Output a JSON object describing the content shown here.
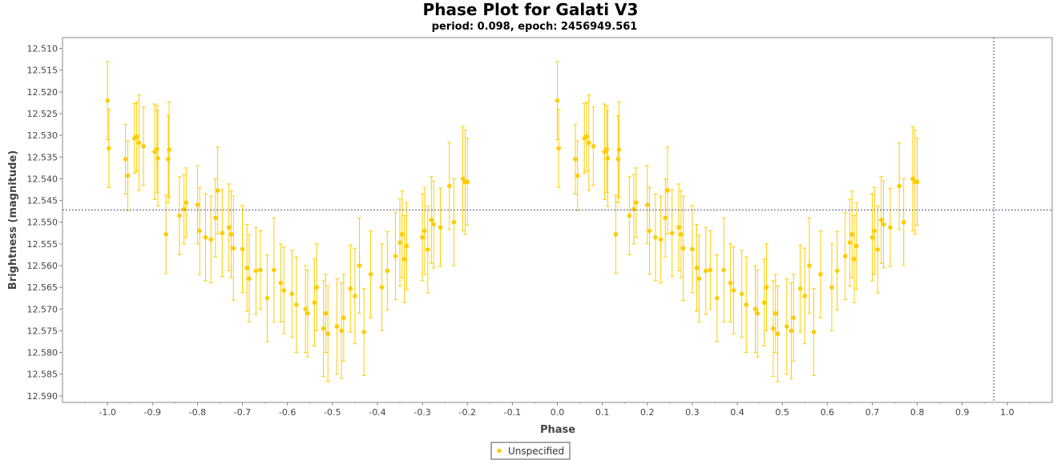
{
  "chart_data": {
    "type": "scatter",
    "title": "Phase Plot for Galati V3",
    "subtitle": "period: 0.098, epoch: 2456949.561",
    "xlabel": "Phase",
    "ylabel": "Brightness (magnitude)",
    "xlim": [
      -1.1,
      1.1
    ],
    "ylim": [
      12.5915,
      12.5075
    ],
    "y_inverted": true,
    "x_ticks": [
      "-1.0",
      "-0.9",
      "-0.8",
      "-0.7",
      "-0.6",
      "-0.5",
      "-0.4",
      "-0.3",
      "-0.2",
      "-0.1",
      "0.0",
      "0.1",
      "0.2",
      "0.3",
      "0.4",
      "0.5",
      "0.6",
      "0.7",
      "0.8",
      "0.9",
      "1.0"
    ],
    "y_ticks": [
      "12.510",
      "12.515",
      "12.520",
      "12.525",
      "12.530",
      "12.535",
      "12.540",
      "12.545",
      "12.550",
      "12.555",
      "12.560",
      "12.565",
      "12.570",
      "12.575",
      "12.580",
      "12.585",
      "12.590"
    ],
    "mean_magnitude": 12.5472,
    "crosshair_phase": 0.97,
    "grid": false,
    "legend_position": "bottom",
    "marker_color": "#ffcc00",
    "series": [
      {
        "name": "Unspecified",
        "base_points": [
          {
            "x": 0.0,
            "y": 12.522,
            "err": 0.009
          },
          {
            "x": 0.003,
            "y": 12.533,
            "err": 0.009
          },
          {
            "x": 0.04,
            "y": 12.5355,
            "err": 0.008
          },
          {
            "x": 0.045,
            "y": 12.5393,
            "err": 0.008
          },
          {
            "x": 0.06,
            "y": 12.5307,
            "err": 0.008
          },
          {
            "x": 0.065,
            "y": 12.5303,
            "err": 0.008
          },
          {
            "x": 0.07,
            "y": 12.5317,
            "err": 0.011
          },
          {
            "x": 0.08,
            "y": 12.5325,
            "err": 0.009
          },
          {
            "x": 0.105,
            "y": 12.5338,
            "err": 0.011
          },
          {
            "x": 0.11,
            "y": 12.5332,
            "err": 0.01
          },
          {
            "x": 0.112,
            "y": 12.5353,
            "err": 0.011
          },
          {
            "x": 0.13,
            "y": 12.5528,
            "err": 0.009
          },
          {
            "x": 0.135,
            "y": 12.5355,
            "err": 0.01
          },
          {
            "x": 0.137,
            "y": 12.5333,
            "err": 0.011
          },
          {
            "x": 0.16,
            "y": 12.5485,
            "err": 0.009
          },
          {
            "x": 0.17,
            "y": 12.547,
            "err": 0.008
          },
          {
            "x": 0.175,
            "y": 12.5455,
            "err": 0.008
          },
          {
            "x": 0.2,
            "y": 12.546,
            "err": 0.009
          },
          {
            "x": 0.205,
            "y": 12.552,
            "err": 0.01
          },
          {
            "x": 0.218,
            "y": 12.5535,
            "err": 0.01
          },
          {
            "x": 0.23,
            "y": 12.554,
            "err": 0.01
          },
          {
            "x": 0.24,
            "y": 12.549,
            "err": 0.009
          },
          {
            "x": 0.245,
            "y": 12.5427,
            "err": 0.01
          },
          {
            "x": 0.255,
            "y": 12.5525,
            "err": 0.01
          },
          {
            "x": 0.27,
            "y": 12.5512,
            "err": 0.01
          },
          {
            "x": 0.275,
            "y": 12.5528,
            "err": 0.01
          },
          {
            "x": 0.28,
            "y": 12.556,
            "err": 0.012
          },
          {
            "x": 0.3,
            "y": 12.5562,
            "err": 0.01
          },
          {
            "x": 0.31,
            "y": 12.5605,
            "err": 0.01
          },
          {
            "x": 0.315,
            "y": 12.563,
            "err": 0.01
          },
          {
            "x": 0.33,
            "y": 12.5612,
            "err": 0.01
          },
          {
            "x": 0.34,
            "y": 12.561,
            "err": 0.009
          },
          {
            "x": 0.355,
            "y": 12.5675,
            "err": 0.01
          },
          {
            "x": 0.37,
            "y": 12.561,
            "err": 0.012
          },
          {
            "x": 0.385,
            "y": 12.564,
            "err": 0.009
          },
          {
            "x": 0.392,
            "y": 12.5657,
            "err": 0.01
          },
          {
            "x": 0.41,
            "y": 12.5665,
            "err": 0.01
          },
          {
            "x": 0.42,
            "y": 12.569,
            "err": 0.011
          },
          {
            "x": 0.44,
            "y": 12.57,
            "err": 0.01
          },
          {
            "x": 0.445,
            "y": 12.571,
            "err": 0.01
          },
          {
            "x": 0.46,
            "y": 12.5685,
            "err": 0.01
          },
          {
            "x": 0.465,
            "y": 12.565,
            "err": 0.01
          },
          {
            "x": 0.48,
            "y": 12.5745,
            "err": 0.011
          },
          {
            "x": 0.485,
            "y": 12.571,
            "err": 0.009
          },
          {
            "x": 0.49,
            "y": 12.5757,
            "err": 0.011
          },
          {
            "x": 0.51,
            "y": 12.574,
            "err": 0.011
          },
          {
            "x": 0.52,
            "y": 12.575,
            "err": 0.011
          },
          {
            "x": 0.525,
            "y": 12.572,
            "err": 0.01
          },
          {
            "x": 0.54,
            "y": 12.5653,
            "err": 0.01
          },
          {
            "x": 0.55,
            "y": 12.567,
            "err": 0.011
          },
          {
            "x": 0.56,
            "y": 12.56,
            "err": 0.011
          },
          {
            "x": 0.57,
            "y": 12.5753,
            "err": 0.01
          },
          {
            "x": 0.585,
            "y": 12.562,
            "err": 0.01
          },
          {
            "x": 0.61,
            "y": 12.565,
            "err": 0.01
          },
          {
            "x": 0.622,
            "y": 12.5612,
            "err": 0.009
          },
          {
            "x": 0.64,
            "y": 12.5578,
            "err": 0.01
          },
          {
            "x": 0.65,
            "y": 12.5547,
            "err": 0.01
          },
          {
            "x": 0.655,
            "y": 12.5528,
            "err": 0.01
          },
          {
            "x": 0.66,
            "y": 12.5585,
            "err": 0.01
          },
          {
            "x": 0.665,
            "y": 12.5555,
            "err": 0.01
          },
          {
            "x": 0.7,
            "y": 12.5535,
            "err": 0.01
          },
          {
            "x": 0.705,
            "y": 12.552,
            "err": 0.01
          },
          {
            "x": 0.712,
            "y": 12.5563,
            "err": 0.01
          },
          {
            "x": 0.72,
            "y": 12.5495,
            "err": 0.01
          },
          {
            "x": 0.725,
            "y": 12.5505,
            "err": 0.01
          },
          {
            "x": 0.74,
            "y": 12.5512,
            "err": 0.009
          },
          {
            "x": 0.76,
            "y": 12.5417,
            "err": 0.01
          },
          {
            "x": 0.77,
            "y": 12.55,
            "err": 0.01
          },
          {
            "x": 0.79,
            "y": 12.54,
            "err": 0.012
          },
          {
            "x": 0.795,
            "y": 12.5408,
            "err": 0.012
          },
          {
            "x": 0.8,
            "y": 12.5407,
            "err": 0.01
          }
        ]
      }
    ]
  }
}
